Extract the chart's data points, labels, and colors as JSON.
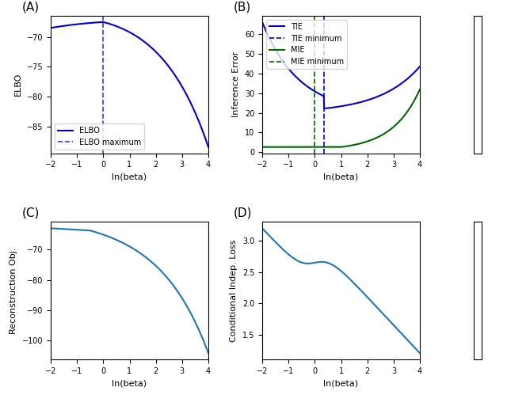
{
  "xlim": [
    -2,
    4
  ],
  "xlabel": "ln(beta)",
  "panel_A": {
    "label": "(A)",
    "ylabel": "ELBO",
    "elbo_color": "#0000cc",
    "vline_color": "#3333ff",
    "vline_x": 0,
    "ylim_approx": [
      -93,
      -67
    ],
    "legend": [
      "ELBO",
      "ELBO maximum"
    ]
  },
  "panel_B": {
    "label": "(B)",
    "ylabel": "Inference Error",
    "tie_color": "#0000cc",
    "mie_color": "#006600",
    "tie_vline_x": 0.35,
    "mie_vline_x": 0.0,
    "ylim_approx": [
      0,
      47
    ],
    "legend": [
      "TIE",
      "TIE minimum",
      "MIE",
      "MIE minimum"
    ]
  },
  "panel_C": {
    "label": "(C)",
    "ylabel": "Reconstruction Obj.",
    "line_color": "#1f77b4",
    "ylim_approx": [
      -92,
      -63
    ]
  },
  "panel_D": {
    "label": "(D)",
    "ylabel": "Conditional Indep. Loss",
    "line_color": "#1f77b4",
    "ylim_approx": [
      1,
      5.5
    ]
  }
}
